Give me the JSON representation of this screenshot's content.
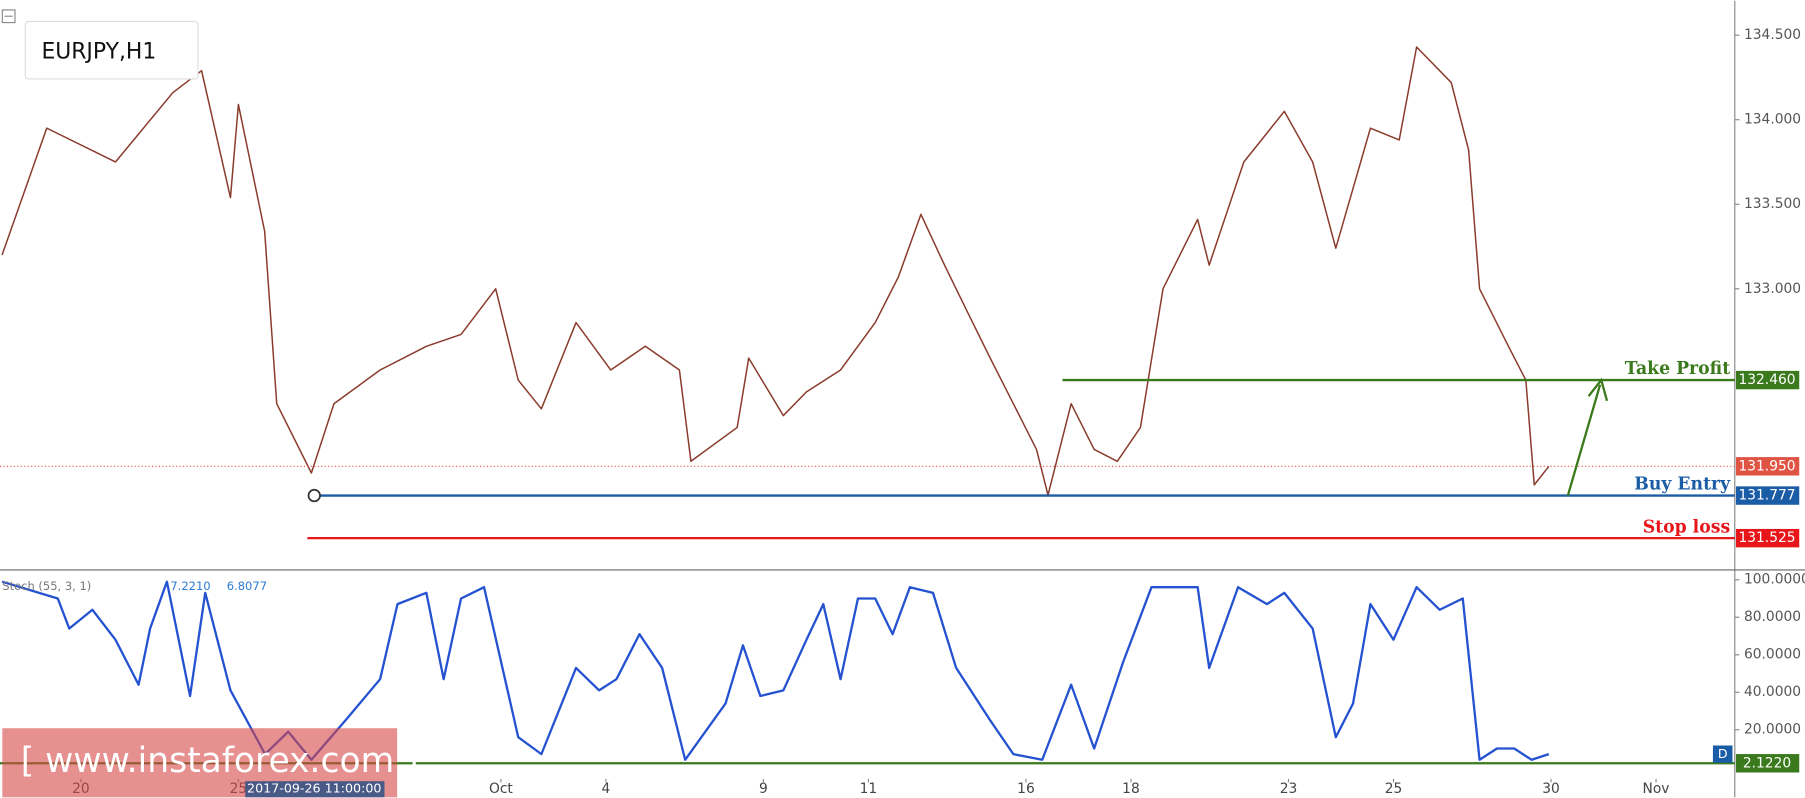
{
  "chart_data": [
    {
      "type": "line",
      "title": "EURJPY,H1",
      "xlim": [
        -1.54,
        31.5
      ],
      "ylim": [
        131.354,
        134.704
      ],
      "yticks": [
        {
          "value": 133,
          "label": "133.000"
        },
        {
          "value": 133.5,
          "label": "133.500"
        },
        {
          "value": 134,
          "label": "134.000"
        },
        {
          "value": 134.5,
          "label": "134.500"
        }
      ],
      "x": [
        -1.5,
        -0.65,
        0.66,
        1.75,
        2.3,
        2.85,
        3.0,
        3.5,
        3.73,
        4.39,
        4.82,
        5.7,
        6.58,
        7.24,
        7.9,
        8.33,
        8.77,
        9.43,
        10.09,
        10.75,
        11.4,
        11.62,
        12.5,
        12.72,
        13.38,
        13.82,
        14.47,
        15.13,
        15.57,
        16.0,
        16.45,
        16.89,
        17.32,
        17.76,
        18.2,
        18.42,
        18.86,
        19.3,
        19.74,
        20.18,
        20.61,
        21.27,
        21.49,
        22.15,
        22.92,
        23.46,
        23.9,
        24.56,
        25.11,
        25.44,
        26.1,
        26.43,
        26.64,
        27.19,
        27.52,
        27.68,
        27.96
      ],
      "series": [
        {
          "color": "#8a3b2c",
          "values": [
            133.2,
            133.95,
            133.75,
            134.16,
            134.29,
            133.54,
            134.09,
            133.34,
            132.32,
            131.91,
            132.32,
            132.52,
            132.66,
            132.73,
            133.0,
            132.46,
            132.29,
            132.8,
            132.52,
            132.66,
            132.52,
            131.98,
            132.18,
            132.59,
            132.25,
            132.39,
            132.52,
            132.8,
            133.07,
            133.44,
            133.14,
            132.86,
            132.59,
            132.32,
            132.05,
            131.78,
            132.32,
            132.05,
            131.98,
            132.18,
            133.0,
            133.41,
            133.14,
            133.75,
            134.05,
            133.75,
            133.24,
            133.95,
            133.88,
            134.43,
            134.22,
            133.82,
            133.0,
            132.66,
            132.46,
            131.84,
            131.95
          ]
        }
      ],
      "levels": [
        {
          "name": "Take Profit",
          "value": 132.46,
          "label": "132.460",
          "color": "#3a7a1c"
        },
        {
          "name": "Buy Entry",
          "value": 131.777,
          "label": "131.777",
          "color": "#1b5ca6"
        },
        {
          "name": "Stop loss",
          "value": 131.525,
          "label": "131.525",
          "color": "#e8161a"
        }
      ],
      "last_price": {
        "value": 131.95,
        "label": "131.950",
        "color": "#e05444"
      }
    },
    {
      "type": "line",
      "title": "Stoch (55, 3, 1)",
      "legend_values": [
        "7.2210",
        "6.8077"
      ],
      "xlim": [
        -1.54,
        31.5
      ],
      "ylim": [
        -6.2,
        103.7
      ],
      "yticks": [
        {
          "value": 20,
          "label": "20.0000"
        },
        {
          "value": 40,
          "label": "40.0000"
        },
        {
          "value": 60,
          "label": "60.0000"
        },
        {
          "value": 80,
          "label": "80.0000"
        },
        {
          "value": 100,
          "label": "100.0000"
        }
      ],
      "xticks": [
        {
          "value": 0,
          "label": "20"
        },
        {
          "value": 3,
          "label": "25"
        },
        {
          "value": 8,
          "label": "Oct"
        },
        {
          "value": 10,
          "label": "4"
        },
        {
          "value": 13,
          "label": "9"
        },
        {
          "value": 15,
          "label": "11"
        },
        {
          "value": 18,
          "label": "16"
        },
        {
          "value": 20,
          "label": "18"
        },
        {
          "value": 23,
          "label": "23"
        },
        {
          "value": 25,
          "label": "25"
        },
        {
          "value": 28,
          "label": "30"
        },
        {
          "value": 30,
          "label": "Nov"
        }
      ],
      "x": [
        -1.5,
        -0.44,
        -0.22,
        0.22,
        0.66,
        1.1,
        1.32,
        1.64,
        2.08,
        2.37,
        2.85,
        3.51,
        3.95,
        4.39,
        5.04,
        5.7,
        6.03,
        6.58,
        6.91,
        7.24,
        7.68,
        8.33,
        8.77,
        9.43,
        9.87,
        10.2,
        10.64,
        11.07,
        11.51,
        12.28,
        12.61,
        12.94,
        13.38,
        13.82,
        14.14,
        14.47,
        14.8,
        15.13,
        15.46,
        15.79,
        16.23,
        16.67,
        17.32,
        17.76,
        18.31,
        18.86,
        19.3,
        19.85,
        20.39,
        21.27,
        21.49,
        22.04,
        22.59,
        22.92,
        23.46,
        23.9,
        24.23,
        24.56,
        25.0,
        25.44,
        25.88,
        26.32,
        26.64,
        26.97,
        27.3,
        27.63,
        27.96
      ],
      "series": [
        {
          "color": "#2452d0",
          "values": [
            99,
            90,
            74,
            84,
            68,
            44,
            74,
            99,
            38,
            93,
            41,
            7,
            19,
            4,
            25,
            47,
            87,
            93,
            47,
            90,
            96,
            16,
            7,
            53,
            41,
            47,
            71,
            53,
            4,
            34,
            65,
            38,
            41,
            68,
            87,
            47,
            90,
            90,
            71,
            96,
            93,
            53,
            25,
            7,
            4,
            44,
            10,
            56,
            96,
            96,
            53,
            96,
            87,
            93,
            74,
            16,
            34,
            87,
            68,
            96,
            84,
            90,
            4,
            10,
            10,
            4,
            7
          ]
        }
      ],
      "level": {
        "value": 2.122,
        "label": "2.1220",
        "color": "#3a7a1c"
      },
      "badge": "D",
      "crosshair_label": "2017-09-26 11:00:00"
    }
  ],
  "watermark": "[ www.instaforex.com ]"
}
